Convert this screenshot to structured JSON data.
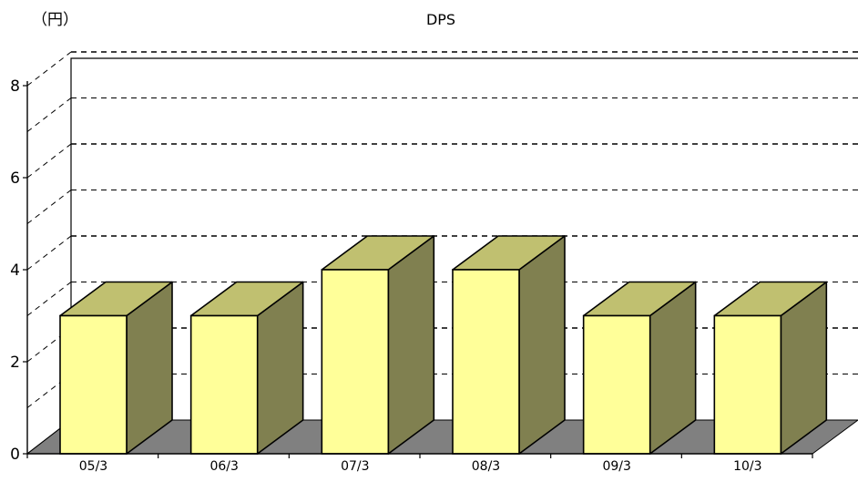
{
  "chart_data": {
    "type": "bar",
    "title": "DPS",
    "ylabel": "（円）",
    "xlabel": "",
    "categories": [
      "05/3",
      "06/3",
      "07/3",
      "08/3",
      "09/3",
      "10/3"
    ],
    "values": [
      3,
      3,
      4,
      4,
      3,
      3
    ],
    "ylim": [
      0,
      8
    ],
    "yticks": [
      0,
      2,
      4,
      6,
      8
    ],
    "grid": true,
    "legend": "none",
    "colors": {
      "bar_front": "#FFFF99",
      "bar_top": "#C0C070",
      "bar_side": "#808050",
      "floor": "#808080",
      "grid": "#000000"
    }
  }
}
